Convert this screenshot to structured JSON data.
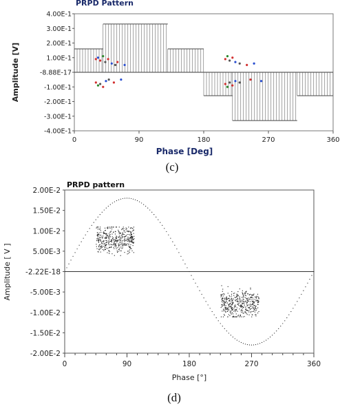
{
  "chart_data": [
    {
      "id": "c",
      "type": "scatter",
      "title": "PRPD Pattern",
      "xlabel": "Phase [Deg]",
      "ylabel": "Amplitude [V]",
      "caption": "(c)",
      "xlim": [
        0,
        360
      ],
      "ylim": [
        -0.4,
        0.4
      ],
      "x_ticks": [
        0,
        90,
        180,
        270,
        360
      ],
      "x_tick_labels": [
        "0",
        "90",
        "180",
        "270",
        "360"
      ],
      "y_ticks": [
        0.4,
        0.3,
        0.2,
        0.1,
        0,
        -0.1,
        -0.2,
        -0.3,
        -0.4
      ],
      "y_tick_labels": [
        "4.00E-1",
        "3.00E-1",
        "2.00E-1",
        "1.00E-1",
        "-8.88E-17",
        "-1.00E-1",
        "-2.00E-1",
        "-3.00E-1",
        "-4.00E-1"
      ],
      "reference": {
        "shape": "square-wave",
        "segments": [
          {
            "x0": 0,
            "x1": 40,
            "y": 0.16
          },
          {
            "x0": 40,
            "x1": 130,
            "y": 0.33
          },
          {
            "x0": 130,
            "x1": 180,
            "y": 0.16
          },
          {
            "x0": 180,
            "x1": 220,
            "y": -0.16
          },
          {
            "x0": 220,
            "x1": 310,
            "y": -0.33
          },
          {
            "x0": 310,
            "x1": 360,
            "y": -0.16
          }
        ]
      },
      "series": [
        {
          "values": [
            [
              30,
              0.09
            ],
            [
              33,
              0.1
            ],
            [
              36,
              0.08
            ],
            [
              40,
              0.11
            ],
            [
              43,
              0.07
            ],
            [
              47,
              0.09
            ],
            [
              52,
              0.06
            ],
            [
              57,
              0.05
            ],
            [
              60,
              0.07
            ],
            [
              70,
              0.05
            ],
            [
              30,
              -0.07
            ],
            [
              33,
              -0.09
            ],
            [
              36,
              -0.08
            ],
            [
              40,
              -0.1
            ],
            [
              44,
              -0.06
            ],
            [
              48,
              -0.05
            ],
            [
              55,
              -0.07
            ],
            [
              65,
              -0.05
            ],
            [
              210,
              0.09
            ],
            [
              213,
              0.11
            ],
            [
              216,
              0.08
            ],
            [
              220,
              0.1
            ],
            [
              224,
              0.07
            ],
            [
              230,
              0.06
            ],
            [
              240,
              0.05
            ],
            [
              250,
              0.06
            ],
            [
              210,
              -0.08
            ],
            [
              213,
              -0.1
            ],
            [
              216,
              -0.07
            ],
            [
              220,
              -0.09
            ],
            [
              224,
              -0.06
            ],
            [
              230,
              -0.07
            ],
            [
              245,
              -0.05
            ],
            [
              260,
              -0.06
            ]
          ]
        }
      ]
    },
    {
      "id": "d",
      "type": "scatter",
      "title": "PRPD pattern",
      "xlabel": "Phase [°]",
      "ylabel": "Amplitude [ V ]",
      "caption": "(d)",
      "xlim": [
        0,
        360
      ],
      "ylim": [
        -0.02,
        0.02
      ],
      "x_ticks": [
        0,
        90,
        180,
        270,
        360
      ],
      "x_tick_labels": [
        "0",
        "90",
        "180",
        "270",
        "360"
      ],
      "y_ticks": [
        0.02,
        0.015,
        0.01,
        0.005,
        0,
        -0.005,
        -0.01,
        -0.015,
        -0.02
      ],
      "y_tick_labels": [
        "2.00E-2",
        "1.50E-2",
        "1.00E-2",
        "5.00E-3",
        "-2.22E-18",
        "-5.00E-3",
        "-1.00E-2",
        "-1.50E-2",
        "-2.00E-2"
      ],
      "reference": {
        "shape": "sine",
        "amplitude": 0.018
      },
      "clusters": [
        {
          "x_range": [
            45,
            100
          ],
          "y_range": [
            0.001,
            0.011
          ],
          "y_center": 0.008
        },
        {
          "x_range": [
            225,
            280
          ],
          "y_range": [
            -0.011,
            -0.001
          ],
          "y_center": -0.008
        }
      ]
    }
  ]
}
